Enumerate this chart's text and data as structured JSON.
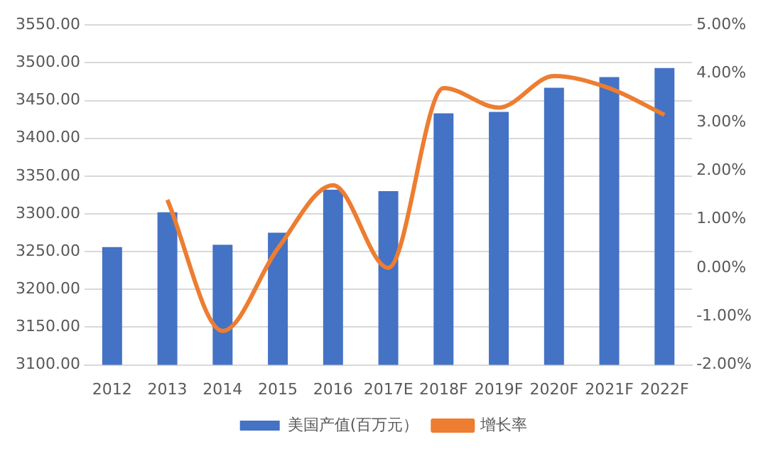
{
  "chart_data": {
    "type": "bar",
    "categories": [
      "2012",
      "2013",
      "2014",
      "2015",
      "2016",
      "2017E",
      "2018F",
      "2019F",
      "2020F",
      "2021F",
      "2022F"
    ],
    "series": [
      {
        "name": "美国产值(百万元）",
        "color": "#4472c4",
        "values": [
          3256,
          3302,
          3259,
          3275,
          3332,
          3330,
          3433,
          3435,
          3467,
          3481,
          3493
        ]
      },
      {
        "name": "增长率",
        "type": "line",
        "axis": "y2",
        "color": "#ed7d31",
        "values": [
          null,
          1.4,
          -1.3,
          0.4,
          1.7,
          0.0,
          3.7,
          3.3,
          3.95,
          3.7,
          3.15
        ]
      }
    ],
    "ylim": [
      3100,
      3550
    ],
    "yticks": [
      {
        "value": 3100,
        "label": "3100.00"
      },
      {
        "value": 3150,
        "label": "3150.00"
      },
      {
        "value": 3200,
        "label": "3200.00"
      },
      {
        "value": 3250,
        "label": "3250.00"
      },
      {
        "value": 3300,
        "label": "3300.00"
      },
      {
        "value": 3350,
        "label": "3350.00"
      },
      {
        "value": 3400,
        "label": "3400.00"
      },
      {
        "value": 3450,
        "label": "3450.00"
      },
      {
        "value": 3500,
        "label": "3500.00"
      },
      {
        "value": 3550,
        "label": "3550.00"
      }
    ],
    "y2lim": [
      -2,
      5
    ],
    "y2ticks": [
      {
        "value": -2,
        "label": "-2.00%"
      },
      {
        "value": -1,
        "label": "-1.00%"
      },
      {
        "value": 0,
        "label": "0.00%"
      },
      {
        "value": 1,
        "label": "1.00%"
      },
      {
        "value": 2,
        "label": "2.00%"
      },
      {
        "value": 3,
        "label": "3.00%"
      },
      {
        "value": 4,
        "label": "4.00%"
      },
      {
        "value": 5,
        "label": "5.00%"
      }
    ],
    "grid": "y",
    "legend": "bottom",
    "marker": "none",
    "line_style": "solid"
  }
}
